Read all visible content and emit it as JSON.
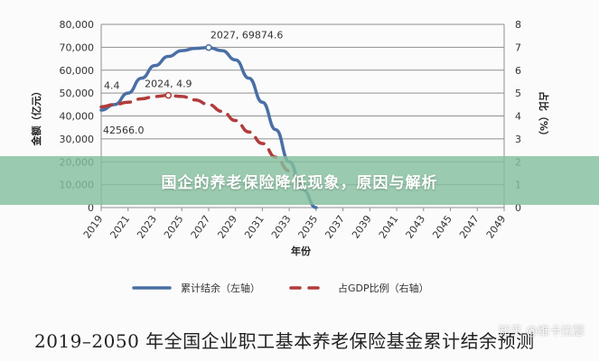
{
  "chart_data": {
    "type": "line",
    "x": [
      "2019",
      "2021",
      "2023",
      "2025",
      "2027",
      "2029",
      "2031",
      "2033",
      "2035",
      "2037",
      "2039",
      "2041",
      "2043",
      "2045",
      "2047",
      "2049"
    ],
    "xlabel": "年份",
    "ylabel_left": "金额（亿元）",
    "ylabel_right": "占比（%）",
    "ylim_left": [
      0,
      80000
    ],
    "ylim_right": [
      0,
      8
    ],
    "yticks_left": [
      "0",
      "10,000",
      "20,000",
      "30,000",
      "40,000",
      "50,000",
      "60,000",
      "70,000",
      "80,000"
    ],
    "yticks_right": [
      "0",
      "1",
      "2",
      "3",
      "4",
      "5",
      "6",
      "7",
      "8"
    ],
    "grid": "horizontal",
    "legend_position": "bottom",
    "series": [
      {
        "name": "累计结余（左轴）",
        "axis": "left",
        "color": "#4a6fa5",
        "style": "solid",
        "x": [
          2019,
          2020,
          2021,
          2022,
          2023,
          2024,
          2025,
          2026,
          2027,
          2028,
          2029,
          2030,
          2031,
          2032,
          2033,
          2034,
          2035
        ],
        "values": [
          42566,
          45000,
          50000,
          56500,
          62000,
          66000,
          68500,
          69500,
          69874.6,
          68500,
          64500,
          56500,
          46000,
          34000,
          20000,
          8000,
          0
        ]
      },
      {
        "name": "占GDP比例（右轴）",
        "axis": "right",
        "color": "#b23b3b",
        "style": "dashed",
        "x": [
          2019,
          2020,
          2021,
          2022,
          2023,
          2024,
          2025,
          2026,
          2027,
          2028,
          2029,
          2030,
          2031,
          2032,
          2033,
          2034
        ],
        "values": [
          4.4,
          4.5,
          4.6,
          4.75,
          4.85,
          4.9,
          4.85,
          4.7,
          4.5,
          4.2,
          3.8,
          3.3,
          2.8,
          2.2,
          1.6,
          1.0
        ]
      }
    ],
    "annotations": [
      {
        "text": "2027, 69874.6",
        "series": 0,
        "x": 2027,
        "y": 69874.6
      },
      {
        "text": "2024, 4.9",
        "series": 1,
        "x": 2024,
        "y": 4.9
      },
      {
        "text": "4.4",
        "series": 1,
        "x": 2019,
        "y": 4.4
      },
      {
        "text": "42566.0",
        "series": 0,
        "x": 2019,
        "y": 42566
      }
    ],
    "caption": "2019–2050 年全国企业职工基本养老保险基金累计结余预测"
  },
  "banner": {
    "text": "国企的养老保险降低现象，原因与解析"
  },
  "watermark": {
    "text": "知乎 @维卡拉瑟"
  }
}
